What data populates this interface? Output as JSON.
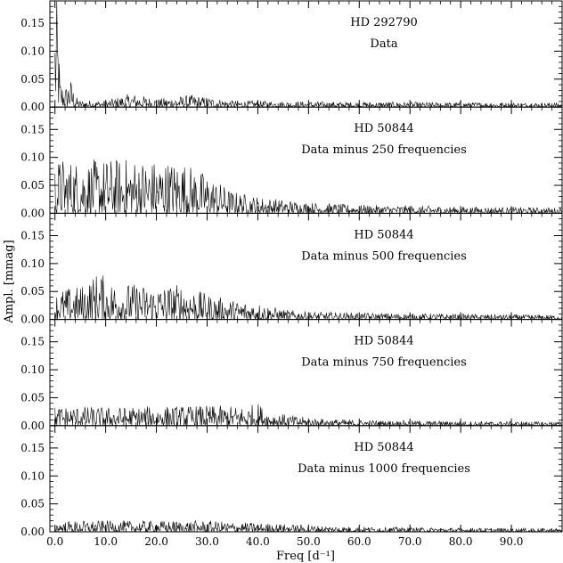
{
  "chart_data": {
    "type": "line",
    "xlabel": "Freq [d⁻¹]",
    "ylabel": "Ampl. [mmag]",
    "xlim": [
      -1,
      100
    ],
    "ylim": [
      0,
      0.19
    ],
    "grid": false,
    "x_ticks": [
      0,
      10,
      20,
      30,
      40,
      50,
      60,
      70,
      80,
      90
    ],
    "x_tick_labels": [
      "0.0",
      "10.0",
      "20.0",
      "30.0",
      "40.0",
      "50.0",
      "60.0",
      "70.0",
      "80.0",
      "90.0"
    ],
    "y_ticks": [
      0,
      0.05,
      0.1,
      0.15
    ],
    "y_tick_labels": [
      "0.00",
      "0.05",
      "0.10",
      "0.15"
    ],
    "panels": [
      {
        "star": "HD 292790",
        "label": "Data",
        "envelope": [
          [
            0,
            0.19
          ],
          [
            0.5,
            0.19
          ],
          [
            1,
            0.05
          ],
          [
            2,
            0.035
          ],
          [
            3,
            0.055
          ],
          [
            4,
            0.02
          ],
          [
            5,
            0.012
          ],
          [
            10,
            0.012
          ],
          [
            15,
            0.025
          ],
          [
            20,
            0.015
          ],
          [
            27,
            0.022
          ],
          [
            35,
            0.012
          ],
          [
            50,
            0.01
          ],
          [
            70,
            0.009
          ],
          [
            99,
            0.008
          ]
        ]
      },
      {
        "star": "HD 50844",
        "label": "Data minus 250 frequencies",
        "envelope": [
          [
            0,
            0.09
          ],
          [
            1,
            0.1
          ],
          [
            5,
            0.095
          ],
          [
            10,
            0.098
          ],
          [
            15,
            0.1
          ],
          [
            20,
            0.095
          ],
          [
            25,
            0.095
          ],
          [
            30,
            0.07
          ],
          [
            35,
            0.04
          ],
          [
            40,
            0.03
          ],
          [
            45,
            0.025
          ],
          [
            50,
            0.02
          ],
          [
            60,
            0.015
          ],
          [
            70,
            0.014
          ],
          [
            80,
            0.012
          ],
          [
            99,
            0.01
          ]
        ]
      },
      {
        "star": "HD 50844",
        "label": "Data minus 500 frequencies",
        "envelope": [
          [
            0,
            0.045
          ],
          [
            1,
            0.055
          ],
          [
            5,
            0.06
          ],
          [
            9,
            0.09
          ],
          [
            10,
            0.07
          ],
          [
            15,
            0.065
          ],
          [
            20,
            0.06
          ],
          [
            25,
            0.065
          ],
          [
            30,
            0.045
          ],
          [
            35,
            0.035
          ],
          [
            40,
            0.03
          ],
          [
            45,
            0.018
          ],
          [
            50,
            0.014
          ],
          [
            60,
            0.012
          ],
          [
            70,
            0.011
          ],
          [
            80,
            0.01
          ],
          [
            99,
            0.008
          ]
        ]
      },
      {
        "star": "HD 50844",
        "label": "Data minus 750 frequencies",
        "envelope": [
          [
            0,
            0.035
          ],
          [
            5,
            0.035
          ],
          [
            10,
            0.033
          ],
          [
            20,
            0.035
          ],
          [
            30,
            0.036
          ],
          [
            38,
            0.035
          ],
          [
            40,
            0.042
          ],
          [
            42,
            0.025
          ],
          [
            50,
            0.014
          ],
          [
            60,
            0.01
          ],
          [
            70,
            0.009
          ],
          [
            80,
            0.008
          ],
          [
            99,
            0.007
          ]
        ]
      },
      {
        "star": "HD 50844",
        "label": "Data minus 1000 frequencies",
        "envelope": [
          [
            0,
            0.018
          ],
          [
            5,
            0.02
          ],
          [
            10,
            0.02
          ],
          [
            20,
            0.02
          ],
          [
            30,
            0.02
          ],
          [
            40,
            0.016
          ],
          [
            50,
            0.012
          ],
          [
            60,
            0.009
          ],
          [
            70,
            0.008
          ],
          [
            80,
            0.007
          ],
          [
            99,
            0.006
          ]
        ]
      }
    ]
  }
}
